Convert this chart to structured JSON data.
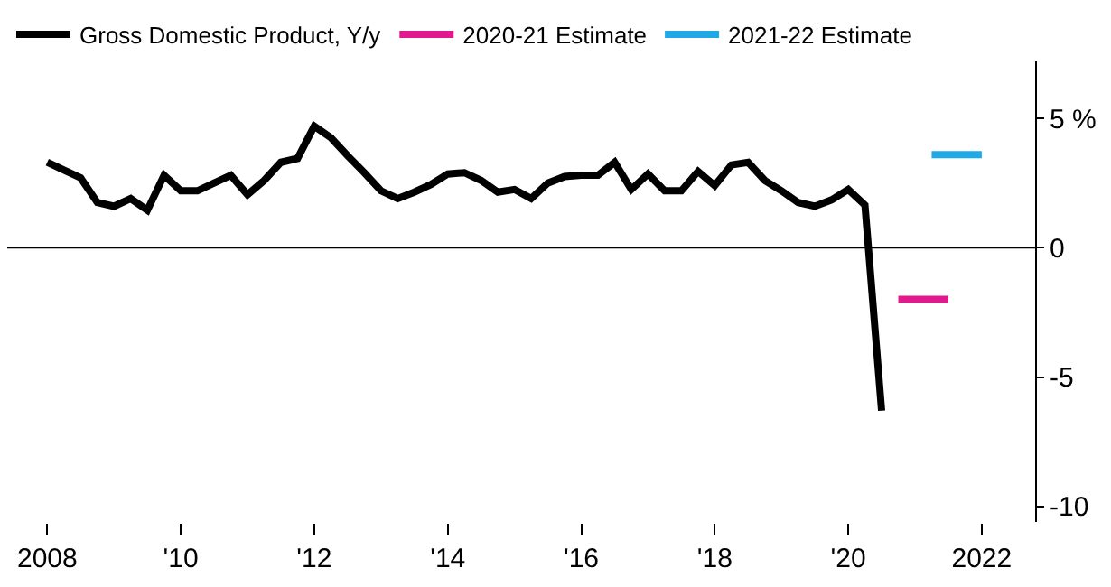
{
  "chart_data": {
    "type": "line",
    "legend": "top left",
    "grid": false,
    "marker": "none",
    "line_style": "solid",
    "xlim": [
      2007.4,
      2022.8
    ],
    "ylim": [
      -10.6,
      7.2
    ],
    "xticks": [
      2008,
      {
        "value": 2010,
        "label": "'10"
      },
      {
        "value": 2012,
        "label": "'12"
      },
      {
        "value": 2014,
        "label": "'14"
      },
      {
        "value": 2016,
        "label": "'16"
      },
      {
        "value": 2018,
        "label": "'18"
      },
      {
        "value": 2020,
        "label": "'20"
      },
      2022
    ],
    "yticks": [
      {
        "value": 5,
        "label": "5 %"
      },
      0,
      -5,
      -10
    ],
    "ref_lines": [
      {
        "axis": "y",
        "value": 0,
        "color": "#000000"
      }
    ],
    "series": [
      {
        "name": "Gross Domestic Product, Y/y",
        "color": "#000000",
        "x": [
          2008,
          2008.25,
          2008.5,
          2008.75,
          2009,
          2009.25,
          2009.5,
          2009.75,
          2010,
          2010.25,
          2010.5,
          2010.75,
          2011,
          2011.25,
          2011.5,
          2011.75,
          2012,
          2012.25,
          2012.5,
          2012.75,
          2013,
          2013.25,
          2013.5,
          2013.75,
          2014,
          2014.25,
          2014.5,
          2014.75,
          2015,
          2015.25,
          2015.5,
          2015.75,
          2016,
          2016.25,
          2016.5,
          2016.75,
          2017,
          2017.25,
          2017.5,
          2017.75,
          2018,
          2018.25,
          2018.5,
          2018.75,
          2019,
          2019.25,
          2019.5,
          2019.75,
          2020,
          2020.25,
          2020.5
        ],
        "values": [
          3.3,
          3.0,
          2.7,
          1.75,
          1.6,
          1.9,
          1.45,
          2.8,
          2.2,
          2.2,
          2.5,
          2.8,
          2.05,
          2.6,
          3.3,
          3.45,
          4.7,
          4.25,
          3.55,
          2.9,
          2.2,
          1.9,
          2.15,
          2.45,
          2.85,
          2.9,
          2.6,
          2.15,
          2.25,
          1.9,
          2.5,
          2.75,
          2.8,
          2.8,
          3.3,
          2.25,
          2.85,
          2.2,
          2.2,
          2.95,
          2.4,
          3.2,
          3.3,
          2.6,
          2.2,
          1.75,
          1.6,
          1.85,
          2.25,
          1.65,
          -6.3
        ]
      },
      {
        "name": "2020-21 Estimate",
        "color": "#e0198c",
        "x": [
          2020.75,
          2021.5
        ],
        "values": [
          -2,
          -2
        ]
      },
      {
        "name": "2021-22 Estimate",
        "color": "#1fa9e6",
        "x": [
          2021.25,
          2022
        ],
        "values": [
          3.6,
          3.6
        ]
      }
    ]
  }
}
